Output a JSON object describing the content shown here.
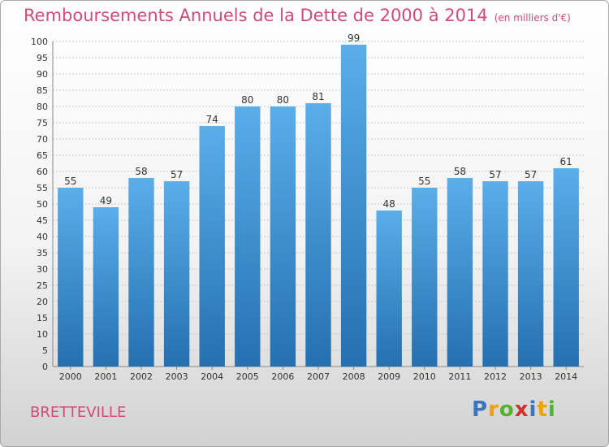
{
  "title": "Remboursements Annuels de la Dette de 2000 à 2014",
  "unit": "(en milliers d'€)",
  "commune": "BRETTEVILLE",
  "logo": {
    "letters": [
      "P",
      "r",
      "o",
      "x",
      "i",
      "t",
      "i"
    ]
  },
  "colors": {
    "title": "#d04a7a",
    "bar_top": "#5aaeea",
    "bar_bottom": "#2470b0",
    "grid": "#c8c8c8",
    "text": "#333333"
  },
  "chart_data": {
    "type": "bar",
    "categories": [
      "2000",
      "2001",
      "2002",
      "2003",
      "2004",
      "2005",
      "2006",
      "2007",
      "2008",
      "2009",
      "2010",
      "2011",
      "2012",
      "2013",
      "2014"
    ],
    "values": [
      55,
      49,
      58,
      57,
      74,
      80,
      80,
      81,
      99,
      48,
      55,
      58,
      57,
      57,
      61
    ],
    "ylim": [
      0,
      100
    ],
    "ytick_step": 5,
    "grid": true,
    "title": "Remboursements Annuels de la Dette de 2000 à 2014",
    "xlabel": "",
    "ylabel": ""
  }
}
